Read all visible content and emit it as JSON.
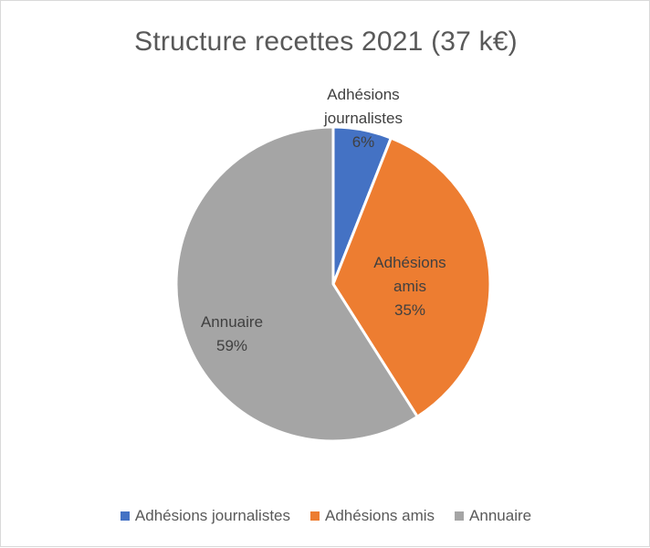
{
  "chart_data": {
    "type": "pie",
    "title": "Structure recettes 2021 (37 k€)",
    "slices": [
      {
        "name": "Adhésions journalistes",
        "percent": 6,
        "color": "#4472c4",
        "label_lines": [
          "Adhésions",
          "journalistes",
          "6%"
        ]
      },
      {
        "name": "Adhésions amis",
        "percent": 35,
        "color": "#ed7d31",
        "label_lines": [
          "Adhésions",
          "amis",
          "35%"
        ]
      },
      {
        "name": "Annuaire",
        "percent": 59,
        "color": "#a5a5a5",
        "label_lines": [
          "Annuaire",
          "59%"
        ]
      }
    ],
    "legend": [
      "Adhésions journalistes",
      "Adhésions amis",
      "Annuaire"
    ],
    "legend_position": "bottom"
  }
}
